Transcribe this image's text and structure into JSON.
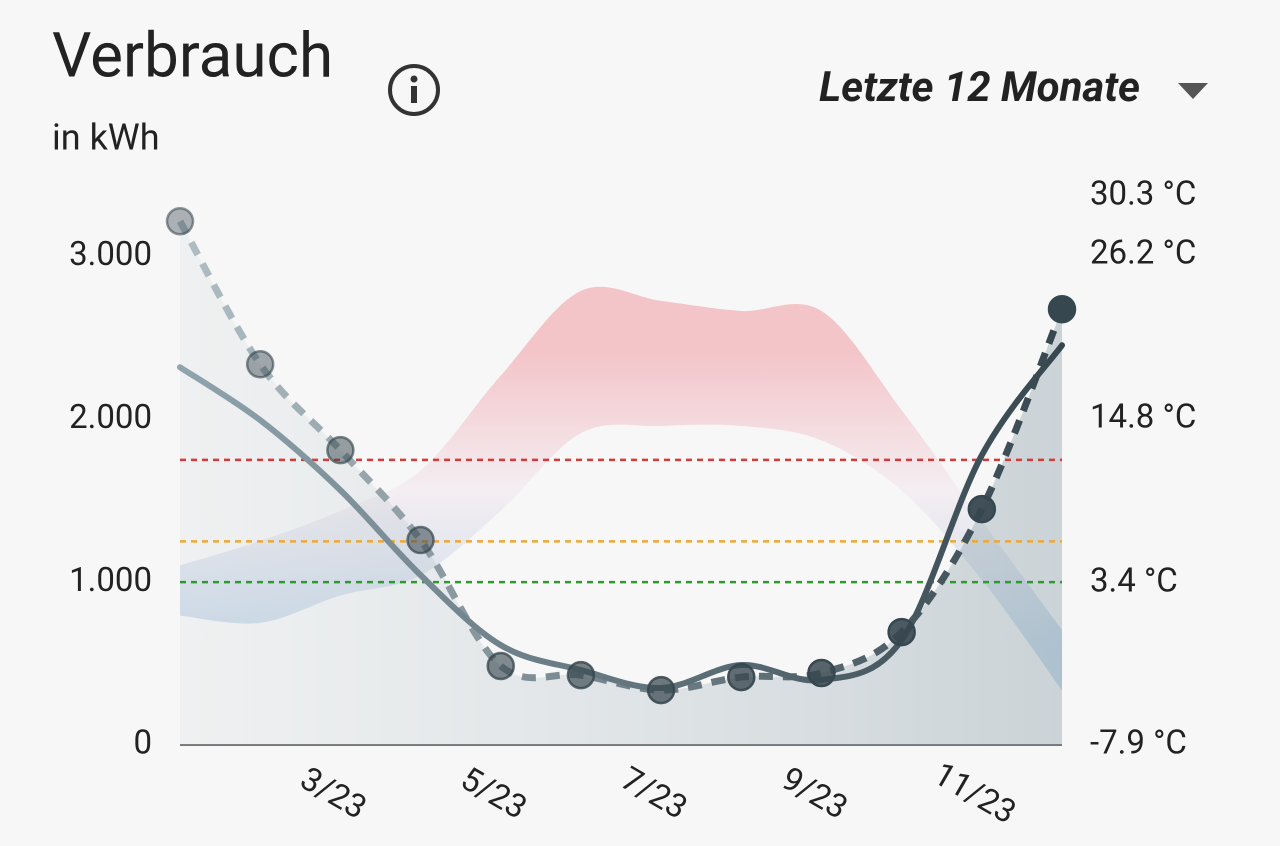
{
  "period_selector": "Letzte 12 Monate",
  "chart_data": {
    "type": "line",
    "title": "Verbrauch",
    "subtitle": "in kWh",
    "categories": [
      null,
      null,
      "3/23",
      null,
      "5/23",
      null,
      "7/23",
      null,
      "9/23",
      null,
      "11/23",
      null
    ],
    "ylim": [
      0,
      3370
    ],
    "yticks": [
      0,
      {
        "value": 1000,
        "label": "1.000"
      },
      {
        "value": 2000,
        "label": "2.000"
      },
      {
        "value": 3000,
        "label": "3.000"
      }
    ],
    "y2lim": [
      -7.9,
      30.3
    ],
    "y2ticks": [
      {
        "value": -7.9,
        "label": "-7.9 °C"
      },
      {
        "value": 3.4,
        "label": "3.4 °C"
      },
      {
        "value": 14.8,
        "label": "14.8 °C"
      },
      {
        "value": 26.2,
        "label": "26.2 °C"
      },
      {
        "value": 30.3,
        "label": "30.3 °C"
      }
    ],
    "series": [
      {
        "style": "dashed-markers",
        "color": "#37474f",
        "light_color": "#b0bec5",
        "area": true,
        "values": [
          3215,
          2337,
          1810,
          1258,
          485,
          429,
          337,
          417,
          442,
          693,
          1448,
          2675
        ]
      },
      {
        "style": "solid",
        "color": "#37474f",
        "light_color": "#90a4ae",
        "values": [
          2319,
          1994,
          1564,
          1043,
          613,
          460,
          350,
          491,
          399,
          644,
          1779,
          2454
        ]
      }
    ],
    "temperature_band": {
      "axis": "y2",
      "warm_color": "#f3c4c8",
      "cold_color": "#c9dbea",
      "high": [
        4.6,
        6.3,
        8.4,
        11.2,
        17.8,
        23.7,
        23.0,
        22.3,
        22.3,
        15.4,
        7.7,
        0.1
      ],
      "low": [
        1.1,
        0.6,
        2.5,
        3.9,
        8.4,
        13.8,
        14.3,
        14.3,
        13.3,
        9.8,
        3.6,
        -4.1
      ]
    },
    "reference_lines": [
      {
        "value": 1000,
        "color": "#2e9a2e"
      },
      {
        "value": 1250,
        "color": "#f0a830"
      },
      {
        "value": 1750,
        "color": "#d63a3a"
      }
    ]
  }
}
